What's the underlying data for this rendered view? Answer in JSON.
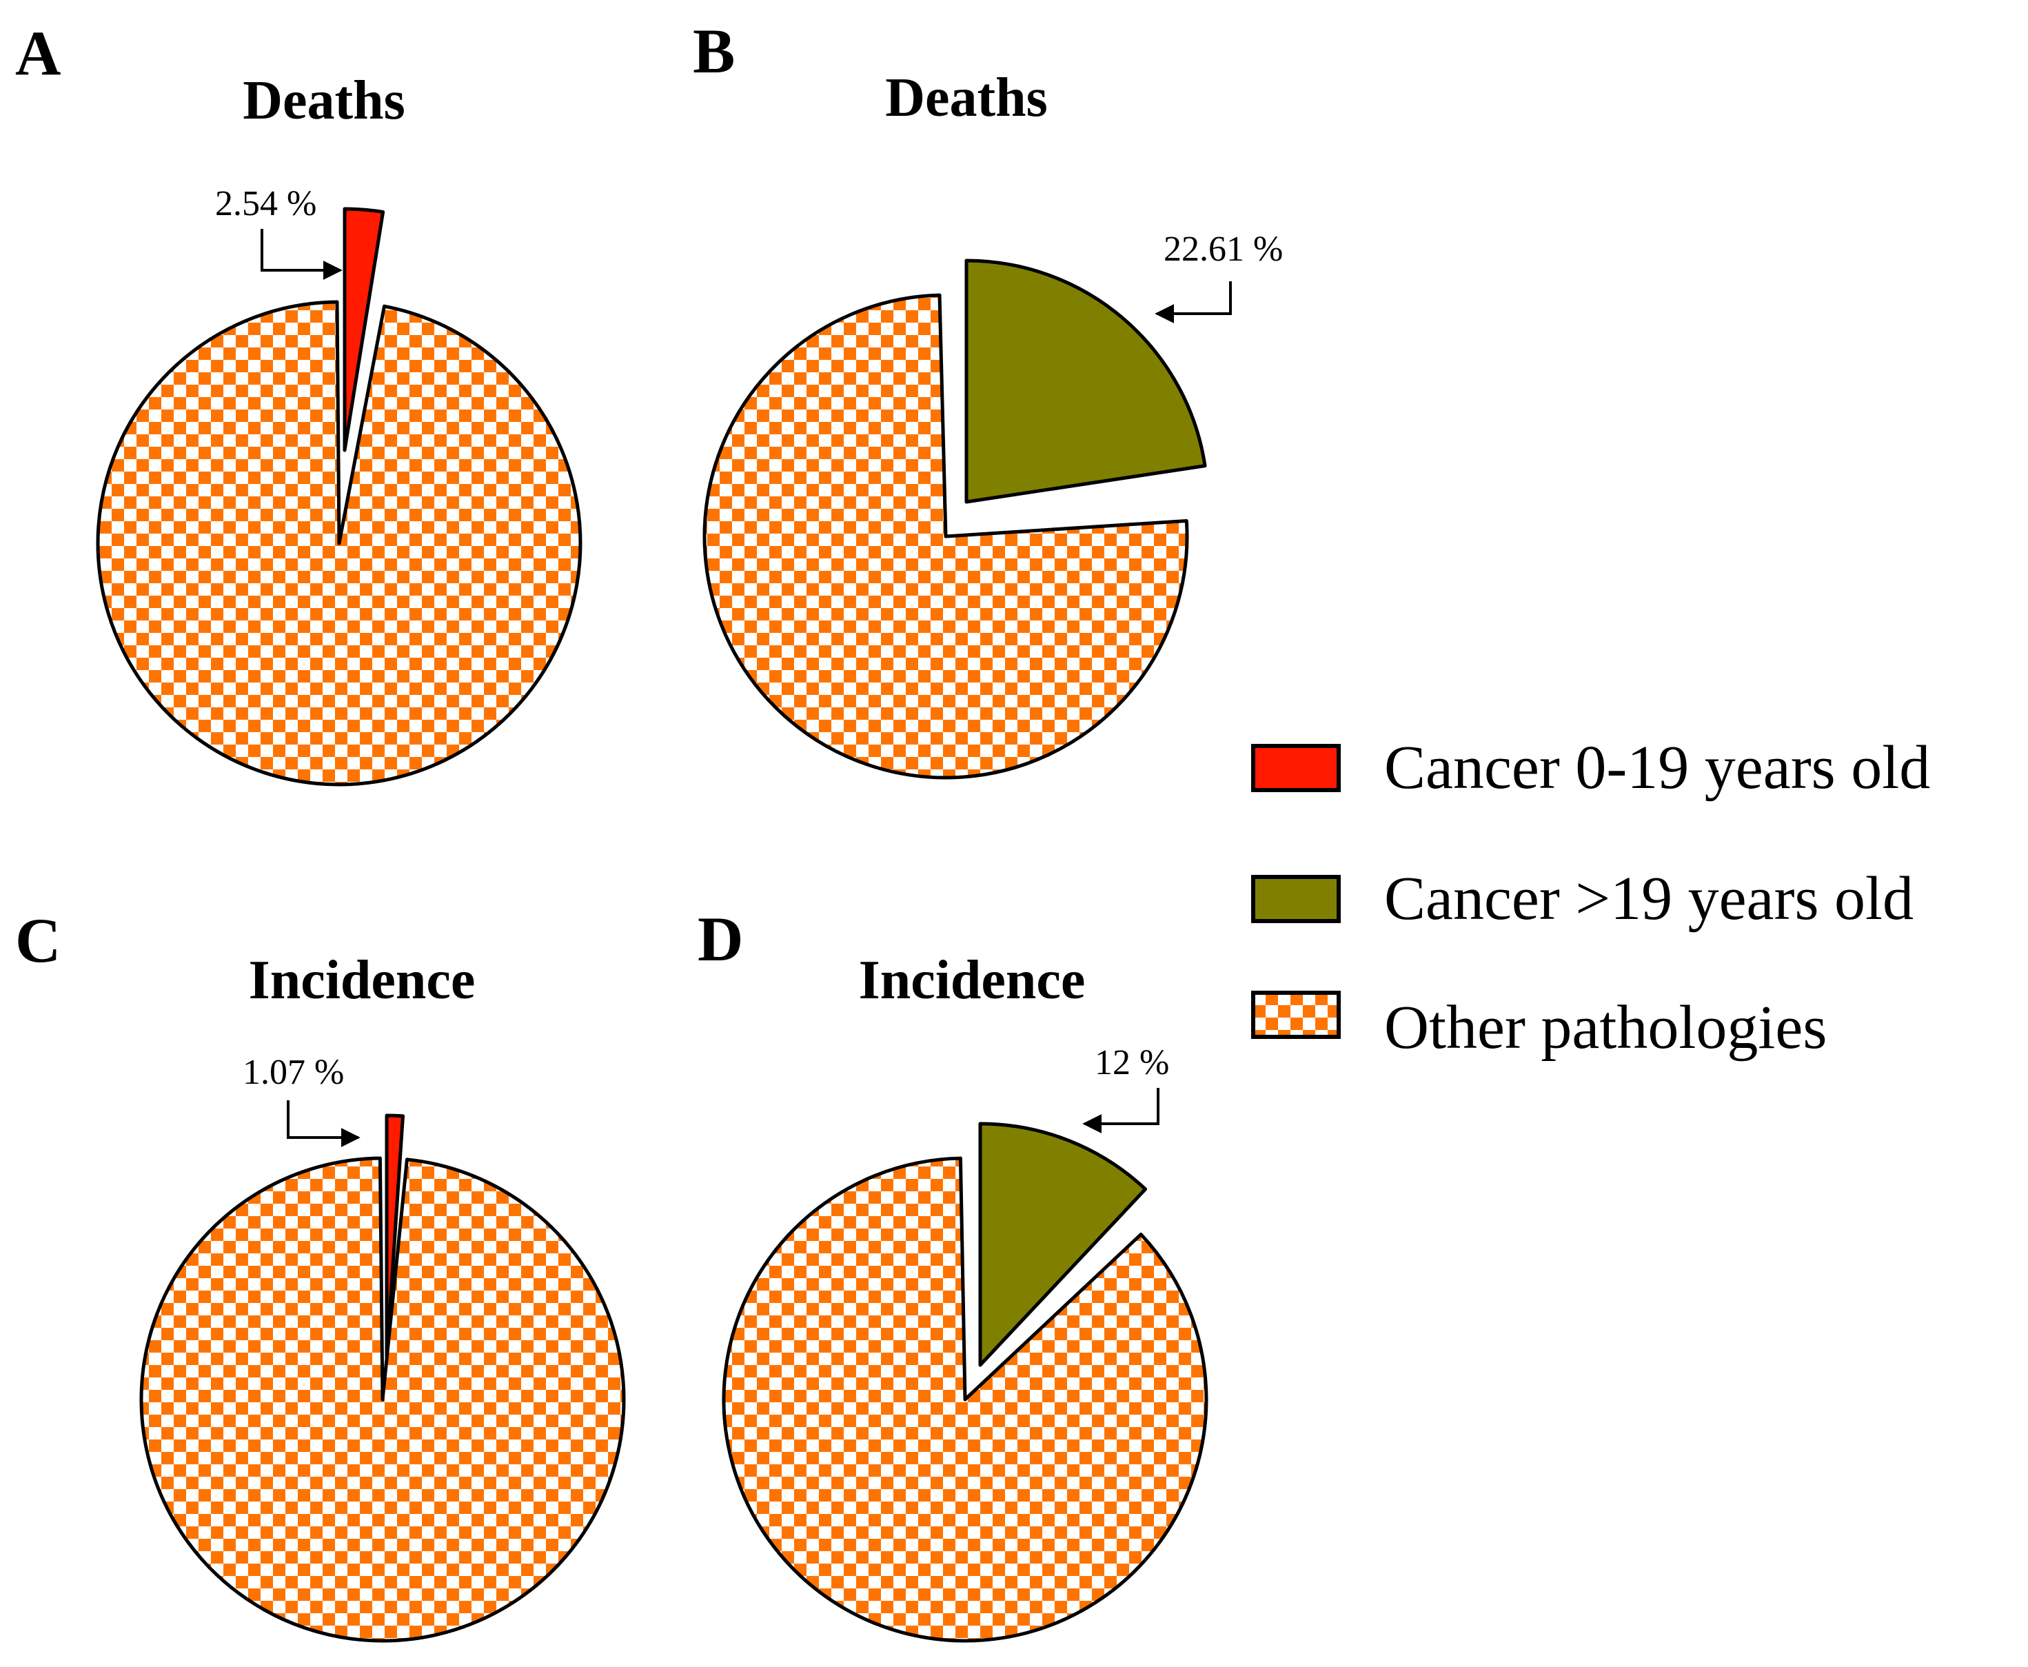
{
  "colors": {
    "cancer_child": "#ff1a00",
    "cancer_adult": "#808000",
    "other_check": "#ff7400",
    "other_bg": "#ffffff"
  },
  "chart_data": [
    {
      "type": "pie",
      "panel": "A",
      "title": "Deaths",
      "slices": [
        {
          "label": "Cancer 0-19 years old",
          "value": 2.54,
          "exploded": true
        },
        {
          "label": "Other pathologies",
          "value": 97.46,
          "exploded": false
        }
      ],
      "annotation": "2.54 %"
    },
    {
      "type": "pie",
      "panel": "B",
      "title": "Deaths",
      "slices": [
        {
          "label": "Cancer >19 years old",
          "value": 22.61,
          "exploded": true
        },
        {
          "label": "Other pathologies",
          "value": 77.39,
          "exploded": false
        }
      ],
      "annotation": "22.61 %"
    },
    {
      "type": "pie",
      "panel": "C",
      "title": "Incidence",
      "slices": [
        {
          "label": "Cancer 0-19 years old",
          "value": 1.07,
          "exploded": true
        },
        {
          "label": "Other pathologies",
          "value": 98.93,
          "exploded": false
        }
      ],
      "annotation": "1.07 %"
    },
    {
      "type": "pie",
      "panel": "D",
      "title": "Incidence",
      "slices": [
        {
          "label": "Cancer >19 years old",
          "value": 12,
          "exploded": true
        },
        {
          "label": "Other pathologies",
          "value": 88,
          "exploded": false
        }
      ],
      "annotation": "12 %"
    }
  ],
  "legend": [
    {
      "label": "Cancer 0-19 years old",
      "swatch": "cancer_child"
    },
    {
      "label": "Cancer >19 years old",
      "swatch": "cancer_adult"
    },
    {
      "label": "Other pathologies",
      "swatch": "other"
    }
  ]
}
